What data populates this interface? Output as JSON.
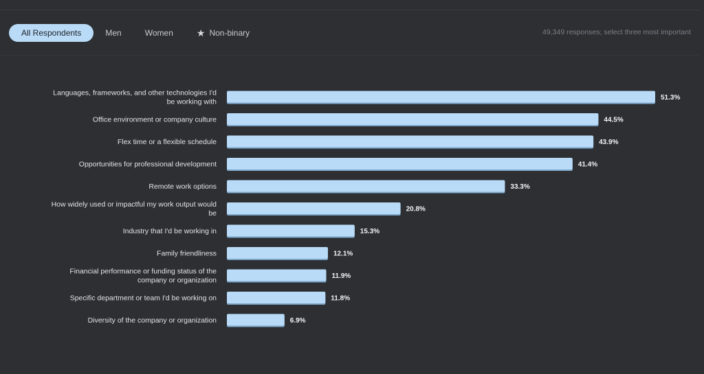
{
  "tabs": [
    {
      "label": "All Respondents",
      "active": true,
      "icon": ""
    },
    {
      "label": "Men",
      "active": false,
      "icon": ""
    },
    {
      "label": "Women",
      "active": false,
      "icon": ""
    },
    {
      "label": "Non-binary",
      "active": false,
      "icon": "star-icon"
    }
  ],
  "responses_note": "49,349 responses; select three most important",
  "colors": {
    "background": "#2d2f33",
    "bar": "#b9dbf8",
    "bar_shadow": "#7fa9cc",
    "label_text": "#e2e4e7",
    "active_tab": "#b9dbf8"
  },
  "chart_data": {
    "type": "bar",
    "orientation": "horizontal",
    "value_suffix": "%",
    "categories": [
      [
        "Languages, frameworks, and other technologies I'd",
        "be working with"
      ],
      [
        "Office environment or company culture"
      ],
      [
        "Flex time or a flexible schedule"
      ],
      [
        "Opportunities for professional development"
      ],
      [
        "Remote work options"
      ],
      [
        "How widely used or impactful my work output would",
        "be"
      ],
      [
        "Industry that I'd be working in"
      ],
      [
        "Family friendliness"
      ],
      [
        "Financial performance or funding status of the",
        "company or organization"
      ],
      [
        "Specific department or team I'd be working on"
      ],
      [
        "Diversity of the company or organization"
      ]
    ],
    "values": [
      51.3,
      44.5,
      43.9,
      41.4,
      33.3,
      20.8,
      15.3,
      12.1,
      11.9,
      11.8,
      6.9
    ],
    "value_labels": [
      "51.3%",
      "44.5%",
      "43.9%",
      "41.4%",
      "33.3%",
      "20.8%",
      "15.3%",
      "12.1%",
      "11.9%",
      "11.8%",
      "6.9%"
    ],
    "xlim": [
      0,
      51.3
    ],
    "grid": false,
    "legend": "none"
  }
}
